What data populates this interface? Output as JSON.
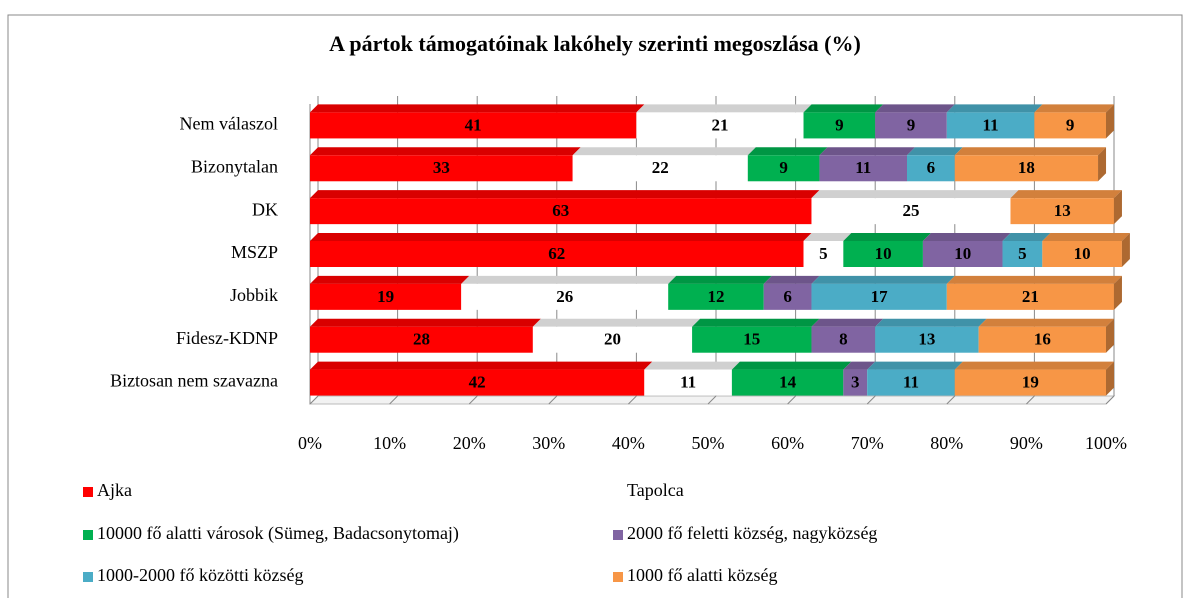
{
  "chart_data": {
    "type": "stacked_bar_horizontal",
    "title": "A pártok támogatóinak lakóhely szerinti megoszlása (%)",
    "categories": [
      "Nem válaszol",
      "Bizonytalan",
      "DK",
      "MSZP",
      "Jobbik",
      "Fidesz-KDNP",
      "Biztosan nem szavazna"
    ],
    "series": [
      {
        "name": "Ajka",
        "color": "#ff0000",
        "values": [
          41,
          33,
          63,
          62,
          19,
          28,
          42
        ]
      },
      {
        "name": "Tapolca",
        "color": "#ffffff",
        "values": [
          21,
          22,
          25,
          5,
          26,
          20,
          11
        ]
      },
      {
        "name": "10000 fő alatti városok (Sümeg, Badacsonytomaj)",
        "color": "#00b050",
        "values": [
          9,
          9,
          null,
          10,
          12,
          15,
          14
        ]
      },
      {
        "name": "2000 fő feletti község, nagyközség",
        "color": "#8064a2",
        "values": [
          9,
          11,
          null,
          10,
          6,
          8,
          3
        ]
      },
      {
        "name": "1000-2000 fő közötti község",
        "color": "#4bacc6",
        "values": [
          11,
          6,
          null,
          5,
          17,
          13,
          11
        ]
      },
      {
        "name": "1000 fő alatti község",
        "color": "#f79646",
        "values": [
          9,
          18,
          13,
          10,
          21,
          16,
          19
        ]
      }
    ],
    "xlim": [
      0,
      100
    ],
    "xticks": [
      {
        "value": 0,
        "label": "0%"
      },
      {
        "value": 10,
        "label": "10%"
      },
      {
        "value": 20,
        "label": "20%"
      },
      {
        "value": 30,
        "label": "30%"
      },
      {
        "value": 40,
        "label": "40%"
      },
      {
        "value": 50,
        "label": "50%"
      },
      {
        "value": 60,
        "label": "60%"
      },
      {
        "value": 70,
        "label": "70%"
      },
      {
        "value": 80,
        "label": "80%"
      },
      {
        "value": 90,
        "label": "90%"
      },
      {
        "value": 100,
        "label": "100%"
      }
    ],
    "grid": true,
    "legend": "bottom"
  }
}
